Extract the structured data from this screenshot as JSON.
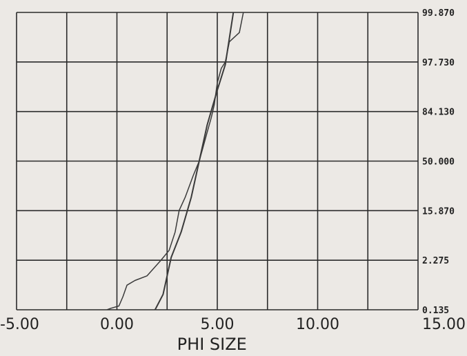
{
  "chart_data": {
    "type": "line",
    "title": "",
    "xlabel": "PHI SIZE",
    "ylabel": "",
    "x_ticks": [
      -5.0,
      0.0,
      5.0,
      10.0,
      15.0
    ],
    "x_tick_labels": [
      "-5.00",
      "0.00",
      "5.00",
      "10.00",
      "15.00"
    ],
    "y_levels": [
      0.135,
      2.275,
      15.87,
      50.0,
      84.13,
      97.73,
      99.87
    ],
    "y_tick_labels": [
      "0.135",
      "2.275",
      "15.870",
      "50.000",
      "84.130",
      "97.730",
      "99.870"
    ],
    "y_scale": "probability",
    "xlim": [
      -5.0,
      15.0
    ],
    "ylim": [
      0.135,
      99.87
    ],
    "grid": true,
    "line_color": "#3a3a3a",
    "series": [
      {
        "values": [
          [
            -0.5,
            0.135
          ],
          [
            -0.3,
            0.2
          ],
          [
            0.1,
            0.3
          ],
          [
            0.3,
            0.7
          ],
          [
            0.5,
            1.2
          ],
          [
            0.9,
            1.4
          ],
          [
            1.5,
            1.6
          ],
          [
            2.2,
            2.3
          ],
          [
            2.6,
            5.0
          ],
          [
            2.9,
            10.0
          ],
          [
            3.1,
            16.0
          ],
          [
            3.4,
            25.0
          ],
          [
            3.8,
            40.0
          ],
          [
            4.1,
            50.0
          ],
          [
            4.3,
            60.0
          ],
          [
            4.5,
            70.0
          ],
          [
            4.7,
            80.0
          ],
          [
            4.85,
            86.0
          ],
          [
            5.0,
            92.0
          ],
          [
            5.2,
            96.0
          ],
          [
            5.4,
            97.7
          ],
          [
            5.6,
            98.6
          ],
          [
            6.1,
            99.0
          ],
          [
            6.3,
            99.87
          ]
        ]
      },
      {
        "values": [
          [
            1.9,
            0.135
          ],
          [
            2.3,
            0.8
          ],
          [
            2.7,
            3.0
          ],
          [
            3.2,
            10.0
          ],
          [
            3.7,
            25.0
          ],
          [
            4.1,
            50.0
          ],
          [
            4.5,
            75.0
          ],
          [
            5.0,
            90.0
          ],
          [
            5.4,
            97.0
          ],
          [
            5.8,
            99.87
          ]
        ]
      }
    ]
  }
}
